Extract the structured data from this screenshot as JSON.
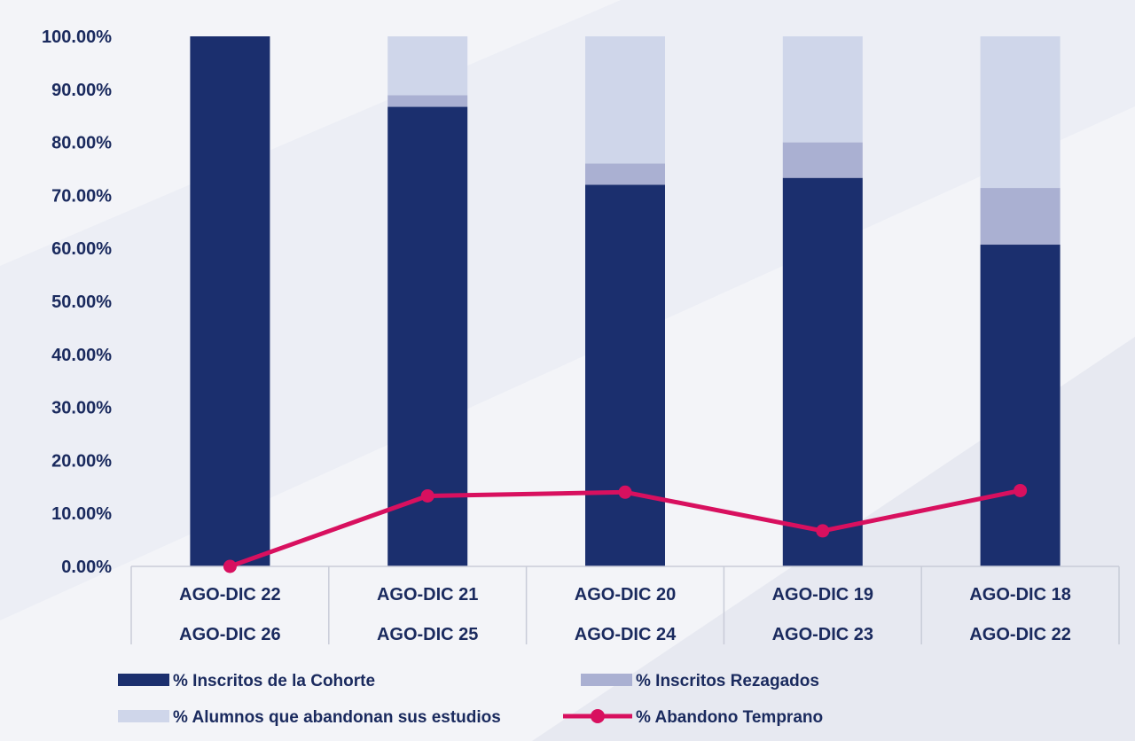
{
  "chart_data": {
    "type": "bar",
    "stacked": true,
    "categories": [
      [
        "AGO-DIC 22",
        "AGO-DIC 26"
      ],
      [
        "AGO-DIC 21",
        "AGO-DIC 25"
      ],
      [
        "AGO-DIC 20",
        "AGO-DIC 24"
      ],
      [
        "AGO-DIC 19",
        "AGO-DIC 23"
      ],
      [
        "AGO-DIC 18",
        "AGO-DIC 22"
      ]
    ],
    "yticks": [
      "0.00%",
      "10.00%",
      "20.00%",
      "30.00%",
      "40.00%",
      "50.00%",
      "60.00%",
      "70.00%",
      "80.00%",
      "90.00%",
      "100.00%"
    ],
    "ylim": [
      0,
      100
    ],
    "series": [
      {
        "name": "% Inscritos de la Cohorte",
        "type": "bar",
        "color": "#1b2f6e",
        "values": [
          100,
          86.7,
          72.0,
          73.3,
          60.7
        ]
      },
      {
        "name": "% Inscritos Rezagados",
        "type": "bar",
        "color": "#aab0d2",
        "values": [
          0,
          2.2,
          4.0,
          6.7,
          10.7
        ]
      },
      {
        "name": "% Alumnos que abandonan sus estudios",
        "type": "bar",
        "color": "#cfd6ea",
        "values": [
          0,
          11.1,
          24.0,
          20.0,
          28.6
        ]
      },
      {
        "name": "% Abandono Temprano",
        "type": "line",
        "color": "#d8105f",
        "values": [
          0,
          13.3,
          14.0,
          6.7,
          14.3
        ]
      }
    ],
    "legend_position": "bottom",
    "grid": false
  }
}
